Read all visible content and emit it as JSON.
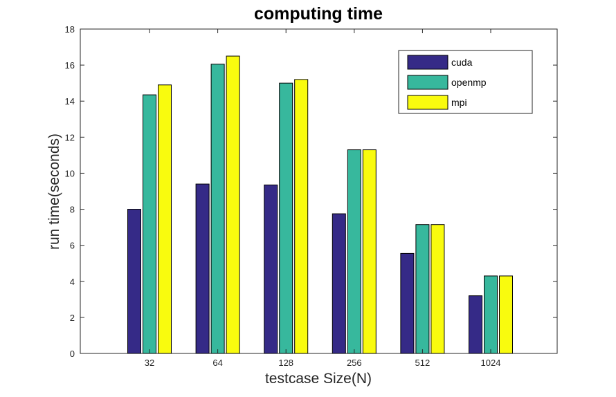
{
  "chart_data": {
    "type": "bar",
    "title": "computing time",
    "xlabel": "testcase Size(N)",
    "ylabel": "run time(seconds)",
    "categories": [
      "32",
      "64",
      "128",
      "256",
      "512",
      "1024"
    ],
    "ylim": [
      0,
      18
    ],
    "yticks": [
      0,
      2,
      4,
      6,
      8,
      10,
      12,
      14,
      16,
      18
    ],
    "grid": false,
    "legend_position": "top-right",
    "series": [
      {
        "name": "cuda",
        "color": "#352a87",
        "values": [
          8.0,
          9.4,
          9.35,
          7.75,
          5.55,
          3.2
        ]
      },
      {
        "name": "openmp",
        "color": "#37b89d",
        "values": [
          14.35,
          16.05,
          15.0,
          11.3,
          7.15,
          4.3
        ]
      },
      {
        "name": "mpi",
        "color": "#f9fb0e",
        "values": [
          14.9,
          16.5,
          15.2,
          11.3,
          7.15,
          4.3
        ]
      }
    ]
  }
}
